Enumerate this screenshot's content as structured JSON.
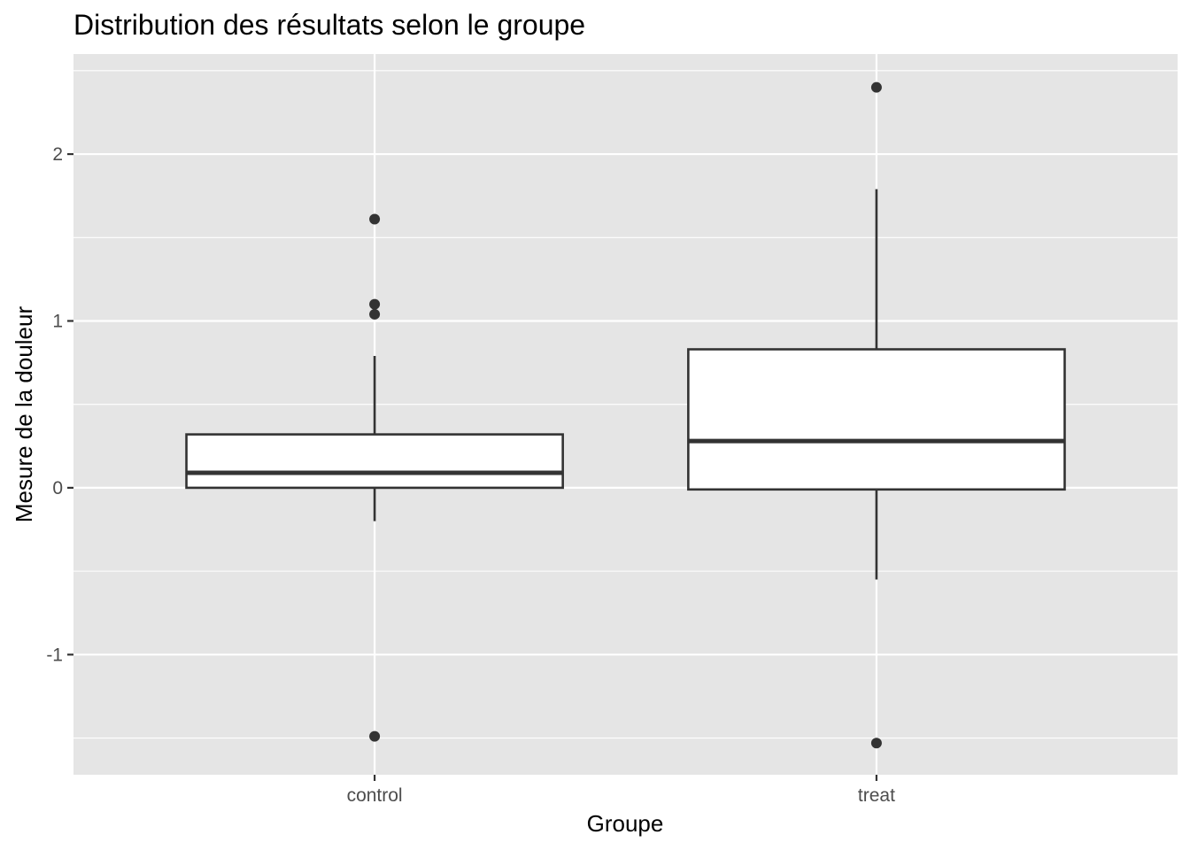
{
  "chart_data": {
    "type": "boxplot",
    "title": "Distribution des résultats selon le groupe",
    "xlabel": "Groupe",
    "ylabel": "Mesure de la douleur",
    "categories": [
      "control",
      "treat"
    ],
    "ylim": [
      -1.72,
      2.6
    ],
    "yticks": [
      -1,
      0,
      1,
      2
    ],
    "ytick_labels": [
      "-1",
      "0",
      "1",
      "2"
    ],
    "grid": true,
    "boxes": [
      {
        "category": "control",
        "q1": 0.0,
        "median": 0.09,
        "q3": 0.32,
        "whisker_low": -0.2,
        "whisker_high": 0.79,
        "outliers": [
          1.61,
          1.1,
          1.04,
          -1.49
        ]
      },
      {
        "category": "treat",
        "q1": -0.01,
        "median": 0.28,
        "q3": 0.83,
        "whisker_low": -0.55,
        "whisker_high": 1.79,
        "outliers": [
          2.4,
          -1.53
        ]
      }
    ],
    "colors": {
      "panel": "#E5E5E5",
      "grid": "#FFFFFF",
      "box_fill": "#FFFFFF",
      "box_line": "#333333",
      "point": "#333333",
      "tick": "#333333"
    }
  }
}
